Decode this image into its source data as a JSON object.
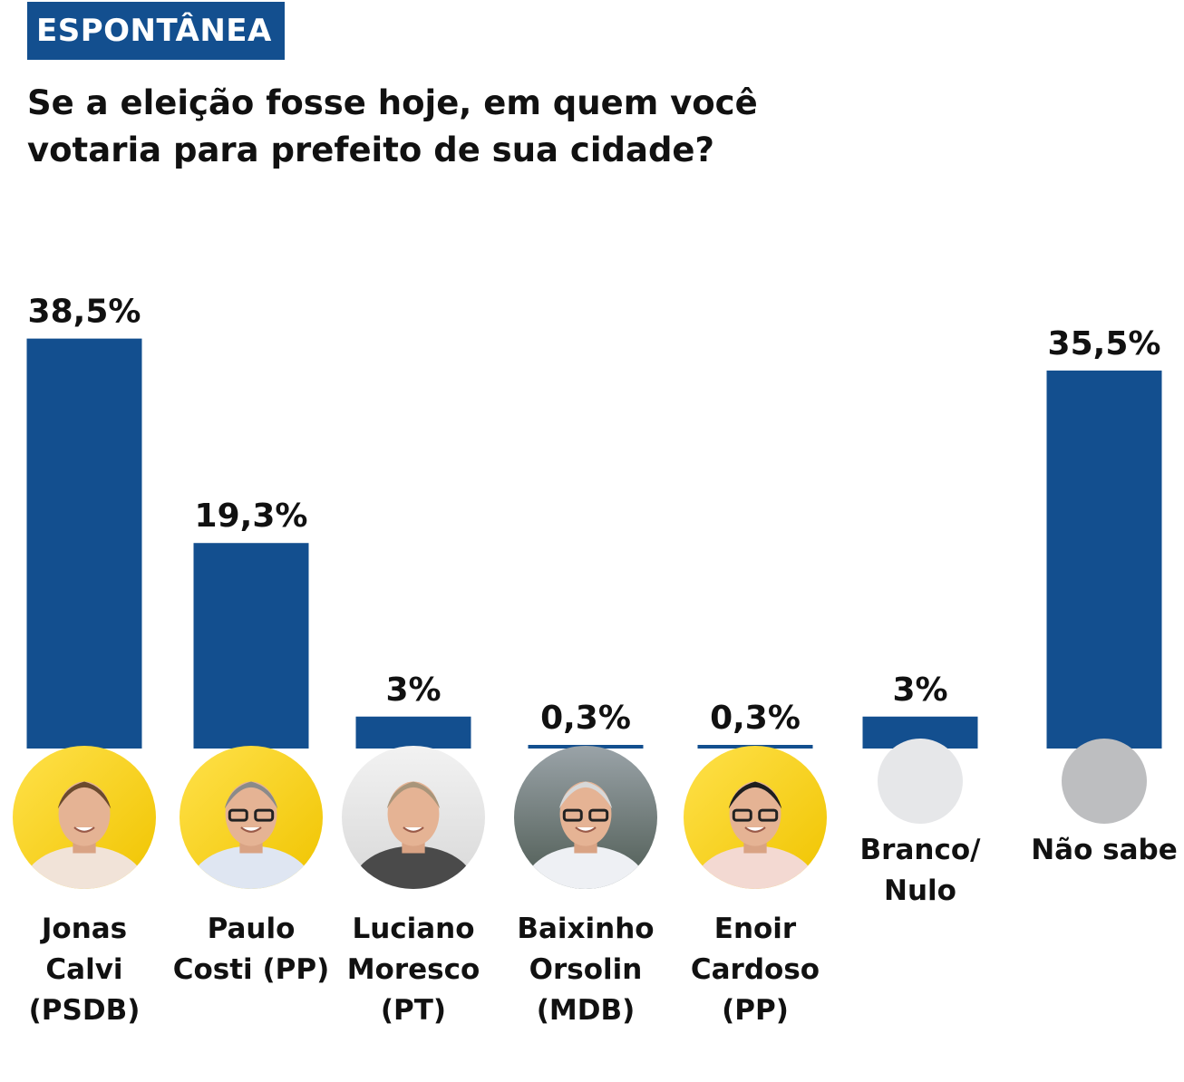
{
  "header": {
    "tag": "ESPONTÂNEA",
    "question_line1": "Se a eleição fosse hoje, em quem você",
    "question_line2": "votaria para prefeito de sua cidade?"
  },
  "colors": {
    "bar": "#134f8f",
    "tag_bg": "#134f8f",
    "photo_yellow": "#f4d31a",
    "placeholder_light": "#e6e7e9",
    "placeholder_dark": "#bdbec0"
  },
  "chart_data": {
    "type": "bar",
    "title": "Se a eleição fosse hoje, em quem você votaria para prefeito de sua cidade?",
    "categories": [
      "Jonas Calvi (PSDB)",
      "Paulo Costi (PP)",
      "Luciano Moresco (PT)",
      "Baixinho Orsolin (MDB)",
      "Enoir Cardoso (PP)",
      "Branco/Nulo",
      "Não sabe"
    ],
    "category_label_lines": [
      [
        "Jonas",
        "Calvi",
        "(PSDB)"
      ],
      [
        "Paulo",
        "Costi (PP)"
      ],
      [
        "Luciano",
        "Moresco",
        "(PT)"
      ],
      [
        "Baixinho",
        "Orsolin",
        "(MDB)"
      ],
      [
        "Enoir",
        "Cardoso",
        "(PP)"
      ],
      [
        "Branco/",
        "Nulo"
      ],
      [
        "Não sabe"
      ]
    ],
    "values": [
      38.5,
      19.3,
      3,
      0.3,
      0.3,
      3,
      35.5
    ],
    "value_labels": [
      "38,5%",
      "19,3%",
      "3%",
      "0,3%",
      "0,3%",
      "3%",
      "35,5%"
    ],
    "markers": [
      "photo-yellow-bg",
      "photo-yellow-bg",
      "photo",
      "photo",
      "photo-yellow-bg",
      "placeholder-light",
      "placeholder-dark"
    ],
    "ylim": [
      0,
      40
    ],
    "xlabel": "",
    "ylabel": "",
    "grid": false,
    "legend": "none"
  }
}
